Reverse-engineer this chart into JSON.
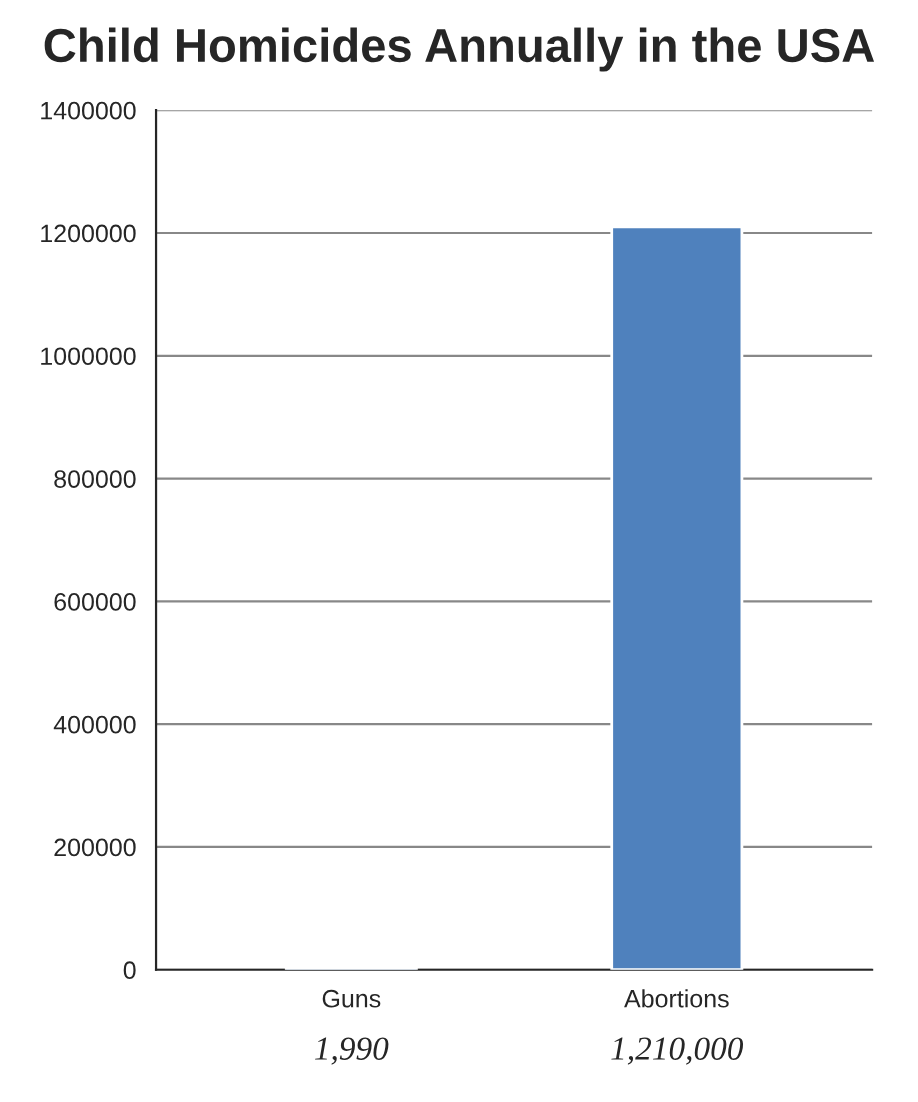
{
  "chart_data": {
    "type": "bar",
    "title": "Child Homicides Annually in the USA",
    "categories": [
      "Guns",
      "Abortions"
    ],
    "values": [
      1990,
      1210000
    ],
    "value_labels": [
      "1,990",
      "1,210,000"
    ],
    "color": "#4f81bd",
    "ylim": [
      0,
      1400000
    ],
    "yticks": [
      0,
      200000,
      400000,
      600000,
      800000,
      1000000,
      1200000,
      1400000
    ],
    "grid": "y"
  }
}
